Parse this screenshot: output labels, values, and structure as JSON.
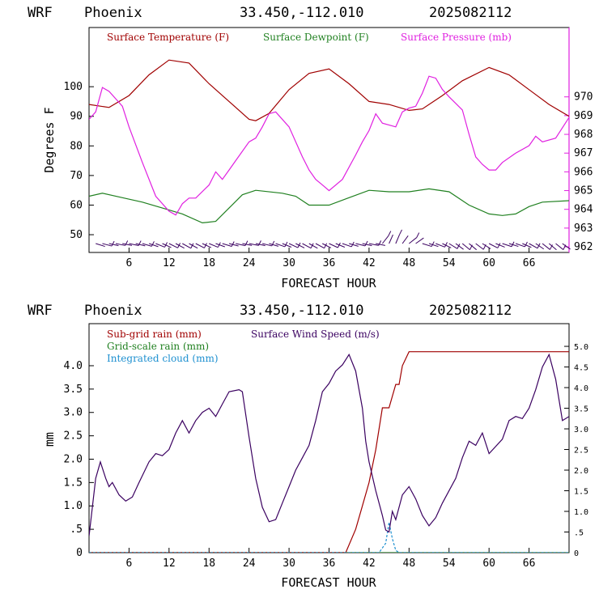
{
  "charts": [
    {
      "header": {
        "model": "WRF",
        "location": "Phoenix",
        "coords": "33.450,-112.010",
        "run": "2025082112"
      },
      "ylabel": "Degrees F",
      "xlabel": "FORECAST HOUR",
      "legend": [
        "Surface Temperature (F)",
        "Surface Dewpoint (F)",
        "Surface Pressure (mb)"
      ]
    },
    {
      "header": {
        "model": "WRF",
        "location": "Phoenix",
        "coords": "33.450,-112.010",
        "run": "2025082112"
      },
      "ylabel": "mm",
      "xlabel": "FORECAST HOUR",
      "legend": [
        "Sub-grid rain (mm)",
        "Grid-scale rain (mm)",
        "Integrated cloud (mm)",
        "Surface Wind Speed (m/s)"
      ]
    }
  ],
  "chart_data": [
    {
      "type": "line",
      "xlabel": "FORECAST HOUR",
      "ylabel": "Degrees F",
      "ylabel_right": "",
      "xlim": [
        0,
        72
      ],
      "ylim": [
        44,
        120
      ],
      "ylim_right": [
        961.7,
        973.7
      ],
      "xticks": [
        "6",
        "12",
        "18",
        "24",
        "30",
        "36",
        "42",
        "48",
        "54",
        "60",
        "66"
      ],
      "yticks": [
        "50",
        "60",
        "70",
        "80",
        "90",
        "100"
      ],
      "yticks_right": [
        "962",
        "963",
        "964",
        "965",
        "966",
        "967",
        "968",
        "969",
        "970"
      ],
      "series": [
        {
          "name": "Surface Temperature (F)",
          "color": "#a00000",
          "axis": "left",
          "x": [
            0,
            3,
            6,
            9,
            12,
            15,
            18,
            21,
            24,
            25,
            27,
            30,
            33,
            36,
            39,
            42,
            45,
            48,
            50,
            53,
            56,
            60,
            63,
            66,
            69,
            72
          ],
          "y": [
            94,
            93,
            97,
            104,
            109,
            108,
            101,
            95,
            89,
            88.5,
            91,
            99,
            104.5,
            106,
            101,
            95,
            94,
            92,
            92.5,
            97,
            102,
            106.5,
            104,
            99,
            94,
            90
          ]
        },
        {
          "name": "Surface Dewpoint (F)",
          "color": "#208020",
          "axis": "left",
          "x": [
            0,
            2,
            5,
            8,
            11,
            14,
            17,
            19,
            21,
            23,
            25,
            29,
            31,
            33,
            36,
            39,
            42,
            45,
            48,
            51,
            54,
            57,
            60,
            62,
            64,
            66,
            68,
            72
          ],
          "y": [
            63,
            64,
            62.5,
            61,
            59,
            57,
            54,
            54.5,
            59,
            63.5,
            65,
            64,
            63,
            60,
            60,
            62.5,
            65,
            64.5,
            64.5,
            65.5,
            64.5,
            60,
            57,
            56.5,
            57,
            59.5,
            61,
            61.5
          ]
        },
        {
          "name": "Surface Pressure (mb)",
          "color": "#e020e0",
          "axis": "right",
          "x": [
            0,
            1,
            2,
            3,
            4,
            5,
            6,
            8,
            10,
            12,
            13,
            14,
            15,
            16,
            18,
            19,
            20,
            21,
            22,
            24,
            25,
            26,
            27,
            28,
            30,
            32,
            33,
            34,
            35,
            36,
            38,
            40,
            41,
            42,
            43,
            44,
            46,
            47,
            48,
            49,
            50,
            51,
            52,
            53,
            54,
            56,
            57,
            58,
            59,
            60,
            61,
            62,
            64,
            66,
            67,
            68,
            70,
            72
          ],
          "y": [
            968.8,
            969.2,
            970.5,
            970.3,
            969.9,
            969.5,
            968.4,
            966.5,
            964.7,
            963.9,
            963.7,
            964.3,
            964.6,
            964.6,
            965.3,
            966,
            965.6,
            966.1,
            966.6,
            967.6,
            967.8,
            968.4,
            969.1,
            969.2,
            968.4,
            966.8,
            966.1,
            965.6,
            965.3,
            965.0,
            965.6,
            966.9,
            967.6,
            968.2,
            969.1,
            968.6,
            968.4,
            969.2,
            969.4,
            969.5,
            970.2,
            971.1,
            971,
            970.4,
            970,
            969.3,
            968,
            966.8,
            966.4,
            966.1,
            966.1,
            966.5,
            967,
            967.4,
            967.9,
            967.6,
            967.8,
            968.9
          ]
        }
      ],
      "wind_barbs": true
    },
    {
      "type": "line",
      "xlabel": "FORECAST HOUR",
      "ylabel": "mm",
      "xlim": [
        0,
        72
      ],
      "ylim": [
        0,
        4.9
      ],
      "ylim_right": [
        0,
        5.55
      ],
      "xticks": [
        "6",
        "12",
        "18",
        "24",
        "30",
        "36",
        "42",
        "48",
        "54",
        "60",
        "66"
      ],
      "yticks": [
        "0",
        ".5",
        "1.0",
        "1.5",
        "2.0",
        "2.5",
        "3.0",
        "3.5",
        "4.0"
      ],
      "yticks_right": [
        "0",
        ".5",
        "1.0",
        "1.5",
        "2.0",
        "2.5",
        "3.0",
        "3.5",
        "4.0",
        "4.5",
        "5.0"
      ],
      "series": [
        {
          "name": "Sub-grid rain (mm)",
          "color": "#a00000",
          "axis": "left",
          "x": [
            0,
            38.5,
            40,
            41,
            42,
            43,
            44,
            44.5,
            45,
            46,
            46.5,
            47,
            48,
            72
          ],
          "y": [
            0,
            0,
            0.5,
            1.0,
            1.5,
            2.2,
            3.1,
            3.1,
            3.1,
            3.6,
            3.6,
            4.0,
            4.3,
            4.3
          ]
        },
        {
          "name": "Grid-scale rain (mm)",
          "color": "#208020",
          "axis": "left",
          "x": [
            0,
            72
          ],
          "y": [
            0,
            0
          ]
        },
        {
          "name": "Integrated cloud (mm)",
          "color": "#1e90d0",
          "axis": "left",
          "x": [
            0,
            43.5,
            44.5,
            45,
            45.5,
            46,
            46.5,
            72
          ],
          "y": [
            0,
            0,
            0.2,
            0.65,
            0.3,
            0.05,
            0,
            0
          ]
        },
        {
          "name": "Surface Wind Speed (m/s)",
          "color": "#3a0060",
          "axis": "right",
          "x": [
            0,
            1,
            1.7,
            2.5,
            3,
            3.5,
            4.5,
            5.5,
            6.5,
            7.5,
            9,
            10,
            11,
            12,
            13,
            14,
            15,
            16,
            17,
            18,
            19,
            20,
            21,
            22.5,
            23,
            24,
            25,
            26,
            27,
            28,
            29,
            30,
            31,
            32,
            33,
            34,
            35,
            36,
            37,
            38,
            39,
            40,
            41,
            41.5,
            42,
            43,
            44,
            44.5,
            45,
            45.5,
            46,
            47,
            48,
            49,
            50,
            51,
            52,
            53,
            55,
            56,
            57,
            58,
            59,
            60,
            62,
            63,
            64,
            65,
            66,
            67,
            68,
            69,
            70,
            71,
            72
          ],
          "y": [
            0.4,
            1.8,
            2.2,
            1.8,
            1.6,
            1.7,
            1.4,
            1.25,
            1.35,
            1.7,
            2.2,
            2.4,
            2.35,
            2.5,
            2.9,
            3.2,
            2.9,
            3.2,
            3.4,
            3.5,
            3.3,
            3.6,
            3.9,
            3.95,
            3.9,
            2.8,
            1.8,
            1.1,
            0.75,
            0.8,
            1.2,
            1.6,
            2.0,
            2.3,
            2.6,
            3.2,
            3.9,
            4.1,
            4.4,
            4.55,
            4.8,
            4.4,
            3.5,
            2.7,
            2.2,
            1.5,
            0.9,
            0.55,
            0.5,
            1.0,
            0.8,
            1.4,
            1.6,
            1.3,
            0.9,
            0.65,
            0.85,
            1.2,
            1.8,
            2.3,
            2.7,
            2.6,
            2.9,
            2.4,
            2.75,
            3.2,
            3.3,
            3.25,
            3.5,
            3.95,
            4.5,
            4.8,
            4.2,
            3.2,
            3.3
          ]
        }
      ]
    }
  ]
}
